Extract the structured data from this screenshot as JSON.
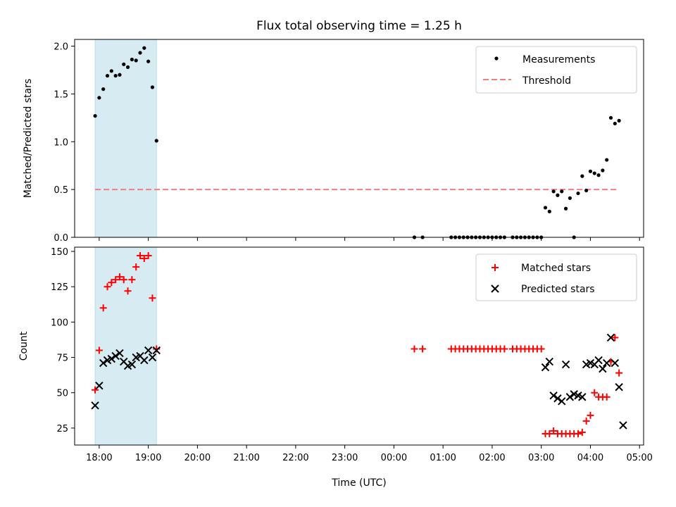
{
  "chart_data": [
    {
      "type": "scatter",
      "title": "Flux total observing time = 1.25 h",
      "ylabel": "Matched/Predicted stars",
      "xlabel": "",
      "ylim": [
        0,
        2.07
      ],
      "yticks": [
        "0.0",
        "0.5",
        "1.0",
        "1.5",
        "2.0"
      ],
      "legend_position": "top-right",
      "shaded_span": {
        "start": "17:55",
        "end": "19:10",
        "color": "#add8e6"
      },
      "series": [
        {
          "name": "Measurements",
          "marker": "dot",
          "color": "#000000",
          "x": [
            "17:55",
            "18:00",
            "18:05",
            "18:10",
            "18:15",
            "18:20",
            "18:25",
            "18:30",
            "18:35",
            "18:40",
            "18:45",
            "18:50",
            "18:55",
            "19:00",
            "19:05",
            "19:10",
            "00:25",
            "00:35",
            "01:10",
            "01:15",
            "01:20",
            "01:25",
            "01:30",
            "01:35",
            "01:40",
            "01:45",
            "01:50",
            "01:55",
            "02:00",
            "02:05",
            "02:10",
            "02:15",
            "02:25",
            "02:30",
            "02:35",
            "02:40",
            "02:45",
            "02:50",
            "02:55",
            "03:00",
            "03:05",
            "03:10",
            "03:15",
            "03:20",
            "03:25",
            "03:30",
            "03:35",
            "03:40",
            "03:45",
            "03:50",
            "03:55",
            "04:00",
            "04:05",
            "04:10",
            "04:15",
            "04:20",
            "04:25",
            "04:30",
            "04:35"
          ],
          "values": [
            1.27,
            1.46,
            1.55,
            1.69,
            1.74,
            1.69,
            1.7,
            1.81,
            1.78,
            1.86,
            1.85,
            1.93,
            1.98,
            1.84,
            1.57,
            1.01,
            0,
            0,
            0,
            0,
            0,
            0,
            0,
            0,
            0,
            0,
            0,
            0,
            0,
            0,
            0,
            0,
            0,
            0,
            0,
            0,
            0,
            0,
            0,
            0,
            0.31,
            0.27,
            0.48,
            0.44,
            0.48,
            0.3,
            0.41,
            0.0,
            0.46,
            0.64,
            0.49,
            0.69,
            0.67,
            0.65,
            0.7,
            0.81,
            1.25,
            1.19,
            1.22
          ]
        },
        {
          "name": "Threshold",
          "type": "line",
          "style": "dashed",
          "color": "#f08080",
          "x": [
            "17:55",
            "04:35"
          ],
          "values": [
            0.5,
            0.5
          ]
        }
      ]
    },
    {
      "type": "scatter",
      "title": "",
      "ylabel": "Count",
      "xlabel": "Time (UTC)",
      "ylim": [
        13,
        153
      ],
      "yticks": [
        "25",
        "50",
        "75",
        "100",
        "125",
        "150"
      ],
      "xticks": [
        "18:00",
        "19:00",
        "20:00",
        "21:00",
        "22:00",
        "23:00",
        "00:00",
        "01:00",
        "02:00",
        "03:00",
        "04:00",
        "05:00"
      ],
      "xlim": [
        "17:30",
        "05:05"
      ],
      "legend_position": "top-right",
      "shaded_span": {
        "start": "17:55",
        "end": "19:10",
        "color": "#add8e6"
      },
      "series": [
        {
          "name": "Matched stars",
          "marker": "plus",
          "color": "#ff0000",
          "x": [
            "17:55",
            "18:00",
            "18:05",
            "18:10",
            "18:15",
            "18:20",
            "18:25",
            "18:30",
            "18:35",
            "18:40",
            "18:45",
            "18:50",
            "18:55",
            "19:00",
            "19:05",
            "19:10",
            "00:25",
            "00:35",
            "01:10",
            "01:15",
            "01:20",
            "01:25",
            "01:30",
            "01:35",
            "01:40",
            "01:45",
            "01:50",
            "01:55",
            "02:00",
            "02:05",
            "02:10",
            "02:15",
            "02:25",
            "02:30",
            "02:35",
            "02:40",
            "02:45",
            "02:50",
            "02:55",
            "03:00",
            "03:05",
            "03:10",
            "03:15",
            "03:20",
            "03:25",
            "03:30",
            "03:35",
            "03:40",
            "03:45",
            "03:50",
            "03:55",
            "04:00",
            "04:05",
            "04:10",
            "04:15",
            "04:20",
            "04:25",
            "04:30",
            "04:35"
          ],
          "values": [
            52,
            80,
            110,
            125,
            128,
            130,
            132,
            130,
            122,
            130,
            139,
            147,
            145,
            147,
            117,
            81,
            81,
            81,
            81,
            81,
            81,
            81,
            81,
            81,
            81,
            81,
            81,
            81,
            81,
            81,
            81,
            81,
            81,
            81,
            81,
            81,
            81,
            81,
            81,
            81,
            21,
            21,
            23,
            21,
            21,
            21,
            21,
            21,
            21,
            22,
            30,
            34,
            50,
            47,
            47,
            47,
            72,
            89,
            64
          ]
        },
        {
          "name": "Predicted stars",
          "marker": "x",
          "color": "#000000",
          "x": [
            "17:55",
            "18:00",
            "18:05",
            "18:10",
            "18:15",
            "18:20",
            "18:25",
            "18:30",
            "18:35",
            "18:40",
            "18:45",
            "18:50",
            "18:55",
            "19:00",
            "19:05",
            "19:10",
            "03:05",
            "03:10",
            "03:15",
            "03:20",
            "03:25",
            "03:30",
            "03:35",
            "03:40",
            "03:45",
            "03:50",
            "03:55",
            "04:00",
            "04:05",
            "04:10",
            "04:15",
            "04:20",
            "04:25",
            "04:30",
            "04:35",
            "04:40"
          ],
          "values": [
            41,
            55,
            71,
            73,
            74,
            76,
            78,
            72,
            69,
            70,
            75,
            76,
            73,
            80,
            75,
            80,
            68,
            72,
            48,
            46,
            44,
            70,
            47,
            49,
            48,
            47,
            70,
            71,
            70,
            73,
            67,
            71,
            89,
            71,
            54,
            27
          ]
        }
      ]
    }
  ]
}
